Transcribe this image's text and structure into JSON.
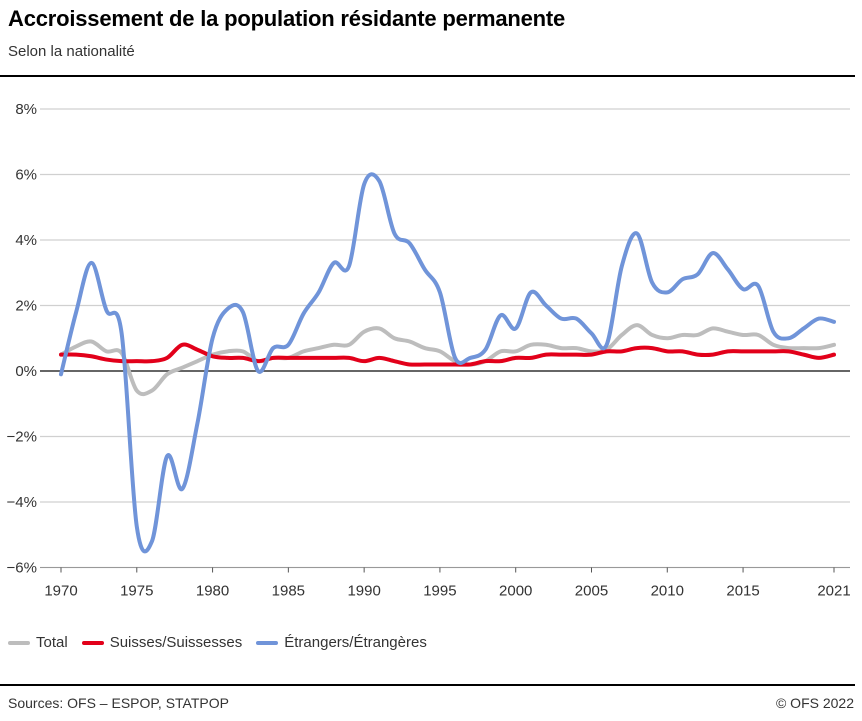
{
  "title": "Accroissement de la population résidante permanente",
  "subtitle": "Selon la nationalité",
  "source": "Sources: OFS – ESPOP, STATPOP",
  "copyright": "© OFS 2022",
  "chart_data": {
    "type": "line",
    "title": "Accroissement de la population résidante permanente",
    "subtitle": "Selon la nationalité",
    "ylim": [
      -6,
      8
    ],
    "y_ticks": [
      "8%",
      "6%",
      "4%",
      "2%",
      "0%",
      "−2%",
      "−4%",
      "−6%"
    ],
    "y_tick_values": [
      8,
      6,
      4,
      2,
      0,
      -2,
      -4,
      -6
    ],
    "x_ticks": [
      "1970",
      "1975",
      "1980",
      "1985",
      "1990",
      "1995",
      "2000",
      "2005",
      "2010",
      "2015",
      "2021"
    ],
    "x_tick_values": [
      1970,
      1975,
      1980,
      1985,
      1990,
      1995,
      2000,
      2005,
      2010,
      2015,
      2021
    ],
    "grid": true,
    "legend_position": "bottom-left",
    "x": [
      1970,
      1971,
      1972,
      1973,
      1974,
      1975,
      1976,
      1977,
      1978,
      1979,
      1980,
      1981,
      1982,
      1983,
      1984,
      1985,
      1986,
      1987,
      1988,
      1989,
      1990,
      1991,
      1992,
      1993,
      1994,
      1995,
      1996,
      1997,
      1998,
      1999,
      2000,
      2001,
      2002,
      2003,
      2004,
      2005,
      2006,
      2007,
      2008,
      2009,
      2010,
      2011,
      2012,
      2013,
      2014,
      2015,
      2016,
      2017,
      2018,
      2019,
      2020,
      2021
    ],
    "series": [
      {
        "name": "Total",
        "color": "#bdbdbd",
        "values": [
          0.5,
          0.75,
          0.9,
          0.6,
          0.55,
          -0.6,
          -0.6,
          -0.1,
          0.1,
          0.3,
          0.5,
          0.6,
          0.6,
          0.3,
          0.4,
          0.4,
          0.6,
          0.7,
          0.8,
          0.8,
          1.2,
          1.3,
          1.0,
          0.9,
          0.7,
          0.6,
          0.3,
          0.2,
          0.3,
          0.6,
          0.6,
          0.8,
          0.8,
          0.7,
          0.7,
          0.6,
          0.65,
          1.1,
          1.4,
          1.1,
          1.0,
          1.1,
          1.1,
          1.3,
          1.2,
          1.1,
          1.1,
          0.8,
          0.7,
          0.7,
          0.7,
          0.8
        ]
      },
      {
        "name": "Suisses/Suissesses",
        "color": "#e2001a",
        "values": [
          0.5,
          0.5,
          0.45,
          0.35,
          0.3,
          0.3,
          0.3,
          0.4,
          0.8,
          0.65,
          0.45,
          0.4,
          0.4,
          0.3,
          0.4,
          0.4,
          0.4,
          0.4,
          0.4,
          0.4,
          0.3,
          0.4,
          0.3,
          0.2,
          0.2,
          0.2,
          0.2,
          0.2,
          0.3,
          0.3,
          0.4,
          0.4,
          0.5,
          0.5,
          0.5,
          0.5,
          0.6,
          0.6,
          0.7,
          0.7,
          0.6,
          0.6,
          0.5,
          0.5,
          0.6,
          0.6,
          0.6,
          0.6,
          0.6,
          0.5,
          0.4,
          0.5
        ]
      },
      {
        "name": "Étrangers/Étrangères",
        "color": "#7094d9",
        "values": [
          -0.1,
          1.8,
          3.3,
          1.85,
          1.15,
          -4.75,
          -5.2,
          -2.6,
          -3.6,
          -1.6,
          1.0,
          1.9,
          1.8,
          0.0,
          0.7,
          0.8,
          1.75,
          2.4,
          3.3,
          3.2,
          5.7,
          5.8,
          4.2,
          3.9,
          3.1,
          2.4,
          0.4,
          0.4,
          0.65,
          1.7,
          1.3,
          2.4,
          2.0,
          1.6,
          1.6,
          1.15,
          0.8,
          3.2,
          4.2,
          2.7,
          2.4,
          2.8,
          2.95,
          3.6,
          3.1,
          2.5,
          2.6,
          1.2,
          1.0,
          1.3,
          1.6,
          1.5
        ]
      }
    ]
  }
}
